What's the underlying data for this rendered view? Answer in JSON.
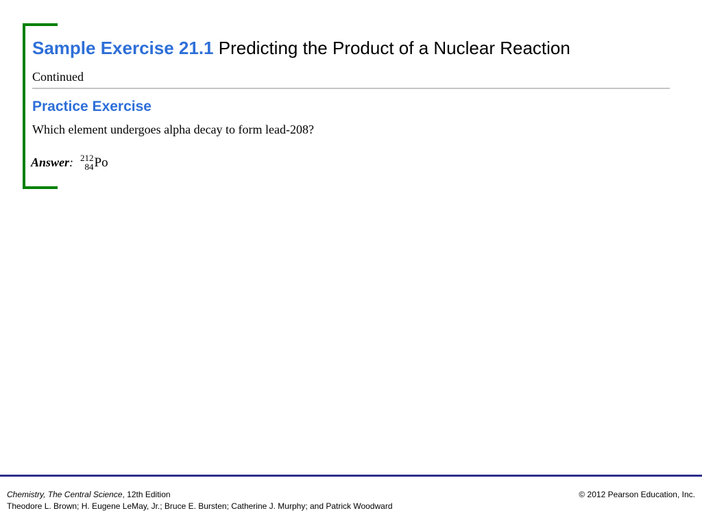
{
  "slide": {
    "title_number": "Sample Exercise 21.1",
    "title_text": "Predicting the Product of a Nuclear Reaction",
    "continued": "Continued",
    "section_heading": "Practice Exercise",
    "question": "Which element undergoes alpha decay to form lead-208?",
    "answer_label": "Answer",
    "answer_colon": ":",
    "answer_nuclide": {
      "mass_number": "212",
      "atomic_number": "84",
      "symbol": "Po"
    }
  },
  "footer": {
    "book_title": "Chemistry, The Central Science",
    "edition": ", 12th Edition",
    "authors": "Theodore L. Brown; H. Eugene LeMay, Jr.; Bruce E. Bursten; Catherine J. Murphy; and Patrick Woodward",
    "copyright": "© 2012 Pearson Education, Inc."
  },
  "colors": {
    "accent_blue": "#2e6fd8",
    "bracket_green": "#008000",
    "footer_rule": "#2e2e8c",
    "divider_gray": "#c4c4c4"
  }
}
